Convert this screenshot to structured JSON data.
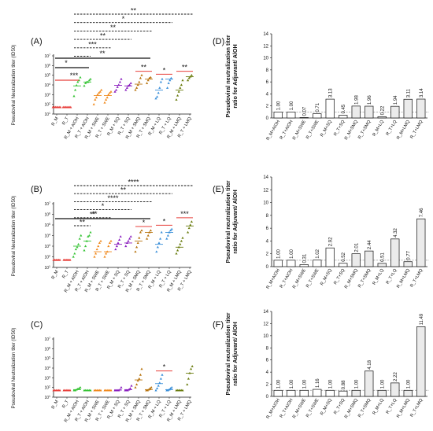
{
  "categories": [
    "R_M",
    "R_T",
    "R_M + AlOH",
    "R_T + AlOH",
    "R_M + SWE",
    "R_T + SWE",
    "R_M + SQ",
    "R_T + SQ",
    "R_M + SMQ",
    "R_T + SMQ",
    "R_M + LQ",
    "R_T + LQ",
    "R_M + LMQ",
    "R_T + LMQ"
  ],
  "ratio_categories": [
    "R_M+AlOH",
    "R_T+AlOH",
    "R_M+SWE",
    "R_T+SWE",
    "R_M+SQ",
    "R_T+SQ",
    "R_M+SMQ",
    "R_T+SMQ",
    "R_M+LQ",
    "R_T+LQ",
    "R_M+LMQ",
    "R_T+LMQ"
  ],
  "colors": {
    "red": "#e8413c",
    "green": "#37c436",
    "orange": "#f08a1e",
    "purple": "#8a1fbf",
    "brown": "#b8740f",
    "blue": "#3a8fd9",
    "olive": "#6b7d10",
    "tan": "#c9a062",
    "black": "#111111",
    "bar_fill": "#ebebeb"
  },
  "chart_data": [
    {
      "panel": "(A)",
      "type": "scatter",
      "ylabel": "Pseudoviral Neutralization titer (ID50)",
      "ylim_log10": [
        1,
        7
      ],
      "ytick_exps": [
        1,
        2,
        3,
        4,
        5,
        6,
        7
      ],
      "groups": [
        {
          "values": [
            50,
            50,
            50,
            50,
            50,
            50,
            50
          ]
        },
        {
          "values": [
            50,
            50,
            50,
            50,
            50,
            50,
            50
          ]
        },
        {
          "values": [
            700,
            3000,
            9000,
            20000,
            30000,
            60000
          ]
        },
        {
          "values": [
            8000,
            15000,
            20000,
            20000,
            30000,
            40000
          ]
        },
        {
          "values": [
            100,
            300,
            500,
            1000,
            1500,
            2000,
            3000
          ]
        },
        {
          "values": [
            150,
            300,
            500,
            1000,
            1500,
            2000
          ]
        },
        {
          "values": [
            2000,
            3000,
            6000,
            10000,
            20000,
            40000
          ]
        },
        {
          "values": [
            3000,
            5000,
            8000,
            10000,
            15000
          ]
        },
        {
          "values": [
            3000,
            5000,
            10000,
            20000,
            50000,
            100000
          ]
        },
        {
          "values": [
            15000,
            30000,
            50000,
            60000
          ]
        },
        {
          "values": [
            400,
            600,
            1500,
            5000,
            20000,
            40000
          ]
        },
        {
          "values": [
            5000,
            15000,
            30000,
            50000
          ]
        },
        {
          "values": [
            300,
            800,
            2000,
            5000,
            10000,
            30000
          ]
        },
        {
          "values": [
            30000,
            50000,
            70000,
            100000
          ]
        }
      ],
      "means": [
        50,
        50,
        8000,
        20000,
        800,
        800,
        9000,
        8000,
        12000,
        40000,
        3000,
        40000,
        3000,
        70000
      ],
      "significance": [
        {
          "from": 0,
          "to": 2,
          "label": "***",
          "style": "solid"
        },
        {
          "from": 0,
          "to": 9,
          "label": "**",
          "style": "solid"
        },
        {
          "from": 0,
          "to": 3,
          "label": "*",
          "style": "solid"
        },
        {
          "from": 8,
          "to": 9,
          "label": "**",
          "style": "solid"
        },
        {
          "from": 10,
          "to": 11,
          "label": "*",
          "style": "solid"
        },
        {
          "from": 12,
          "to": 13,
          "label": "**",
          "style": "solid"
        },
        {
          "from": 2,
          "to": 13,
          "label": "**",
          "style": "dashed"
        },
        {
          "from": 2,
          "to": 11,
          "label": "*",
          "style": "dashed"
        },
        {
          "from": 2,
          "to": 9,
          "label": "**",
          "style": "dashed"
        },
        {
          "from": 2,
          "to": 7,
          "label": "**",
          "style": "dashed"
        },
        {
          "from": 2,
          "to": 5,
          "label": "***",
          "style": "dashed"
        },
        {
          "from": 2,
          "to": 3,
          "label": "",
          "style": "dashed"
        }
      ]
    },
    {
      "panel": "(B)",
      "type": "scatter",
      "ylabel": "Pseudoviral Neutralization titer (ID50)",
      "ylim_log10": [
        1,
        7
      ],
      "ytick_exps": [
        1,
        2,
        3,
        4,
        5,
        6,
        7
      ],
      "groups": [
        {
          "values": [
            50,
            50,
            50,
            50,
            50,
            50
          ]
        },
        {
          "values": [
            50,
            50,
            50,
            50,
            50,
            50
          ]
        },
        {
          "values": [
            100,
            200,
            500,
            800,
            1500,
            5000,
            10000
          ]
        },
        {
          "values": [
            400,
            1000,
            3000,
            8000,
            10000,
            20000
          ]
        },
        {
          "values": [
            100,
            200,
            500,
            1000,
            2000,
            3000
          ]
        },
        {
          "values": [
            100,
            200,
            300,
            1000,
            2000,
            3000
          ]
        },
        {
          "values": [
            500,
            1000,
            2000,
            4000,
            8000
          ]
        },
        {
          "values": [
            1000,
            2000,
            3000,
            5000,
            8000
          ]
        },
        {
          "values": [
            300,
            800,
            2000,
            6000,
            20000,
            30000
          ]
        },
        {
          "values": [
            5000,
            10000,
            20000,
            30000
          ]
        },
        {
          "values": [
            300,
            800,
            2000,
            5000,
            20000
          ]
        },
        {
          "values": [
            5000,
            10000,
            20000,
            30000,
            40000
          ]
        },
        {
          "values": [
            200,
            400,
            800,
            1500,
            3000,
            6000
          ]
        },
        {
          "values": [
            20000,
            50000,
            100000,
            200000
          ]
        }
      ],
      "means": [
        50,
        50,
        1000,
        3000,
        300,
        300,
        1500,
        2000,
        3000,
        20000,
        1500,
        20000,
        800,
        80000
      ],
      "significance": [
        {
          "from": 0,
          "to": 9,
          "label": "**",
          "style": "solid"
        },
        {
          "from": 8,
          "to": 9,
          "label": "*",
          "style": "solid"
        },
        {
          "from": 10,
          "to": 11,
          "label": "*",
          "style": "solid"
        },
        {
          "from": 12,
          "to": 13,
          "label": "***",
          "style": "solid"
        },
        {
          "from": 2,
          "to": 13,
          "label": "****",
          "style": "dashed"
        },
        {
          "from": 2,
          "to": 11,
          "label": "**",
          "style": "dashed"
        },
        {
          "from": 2,
          "to": 9,
          "label": "****",
          "style": "dashed"
        },
        {
          "from": 2,
          "to": 7,
          "label": "*",
          "style": "dashed"
        },
        {
          "from": 2,
          "to": 5,
          "label": "**",
          "style": "dashed"
        },
        {
          "from": 2,
          "to": 3,
          "label": "**",
          "style": "dashed"
        }
      ]
    },
    {
      "panel": "(C)",
      "type": "scatter",
      "ylabel": "Pseudoviral Neutralization titer (ID50)",
      "ylim_log10": [
        1,
        7
      ],
      "ytick_exps": [
        1,
        2,
        3,
        4,
        5,
        6,
        7
      ],
      "groups": [
        {
          "values": [
            50,
            50,
            50,
            50,
            50,
            50
          ]
        },
        {
          "values": [
            50,
            50,
            50,
            50,
            50,
            50
          ]
        },
        {
          "values": [
            50,
            50,
            60,
            70,
            80,
            100
          ]
        },
        {
          "values": [
            50,
            50,
            50,
            50,
            50,
            50
          ]
        },
        {
          "values": [
            50,
            50,
            50,
            50,
            50,
            50
          ]
        },
        {
          "values": [
            50,
            50,
            50,
            50,
            50,
            50
          ]
        },
        {
          "values": [
            50,
            50,
            50,
            50,
            60,
            100
          ]
        },
        {
          "values": [
            50,
            50,
            50,
            60,
            80,
            150
          ]
        },
        {
          "values": [
            100,
            200,
            500,
            800,
            2000,
            8000
          ]
        },
        {
          "values": [
            50,
            50,
            60,
            80,
            100
          ]
        },
        {
          "values": [
            50,
            80,
            150,
            300,
            800,
            2000
          ]
        },
        {
          "values": [
            50,
            50,
            60,
            80,
            100
          ]
        },
        {
          "values": [
            50,
            50,
            50,
            50,
            50,
            50
          ]
        },
        {
          "values": [
            200,
            800,
            3000,
            8000,
            15000
          ]
        }
      ],
      "means": [
        50,
        50,
        60,
        50,
        50,
        50,
        55,
        60,
        600,
        60,
        250,
        60,
        50,
        3000
      ],
      "significance": [
        {
          "from": 10,
          "to": 11,
          "label": "*",
          "style": "solid"
        }
      ]
    },
    {
      "panel": "(D)",
      "type": "bar",
      "ylabel": "Pseudoviral neutralization titer ratio for Adjuvant/ AlOH",
      "ylim": [
        0,
        14
      ],
      "yticks": [
        0,
        2,
        4,
        6,
        8,
        10,
        12,
        14
      ],
      "values": [
        1.0,
        1.0,
        0.07,
        0.71,
        3.13,
        0.45,
        1.98,
        1.96,
        0.22,
        1.94,
        3.11,
        3.14
      ]
    },
    {
      "panel": "(E)",
      "type": "bar",
      "ylabel": "Pseudoviral neutralization titer ratio for Adjuvant/ AlOH",
      "ylim": [
        0,
        14
      ],
      "yticks": [
        0,
        2,
        4,
        6,
        8,
        10,
        12,
        14
      ],
      "values": [
        1.0,
        1.0,
        0.31,
        1.02,
        2.92,
        0.52,
        2.01,
        2.44,
        0.51,
        4.32,
        0.77,
        7.46
      ]
    },
    {
      "panel": "(F)",
      "type": "bar",
      "ylabel": "Pseudoviral neutralization titer ratio for Adjuvant/ AlOH",
      "ylim": [
        0,
        14
      ],
      "yticks": [
        0,
        2,
        4,
        6,
        8,
        10,
        12,
        14
      ],
      "values": [
        1.0,
        1.0,
        1.0,
        1.16,
        1.0,
        0.88,
        1.0,
        4.18,
        1.0,
        2.22,
        1.0,
        11.49
      ]
    }
  ]
}
